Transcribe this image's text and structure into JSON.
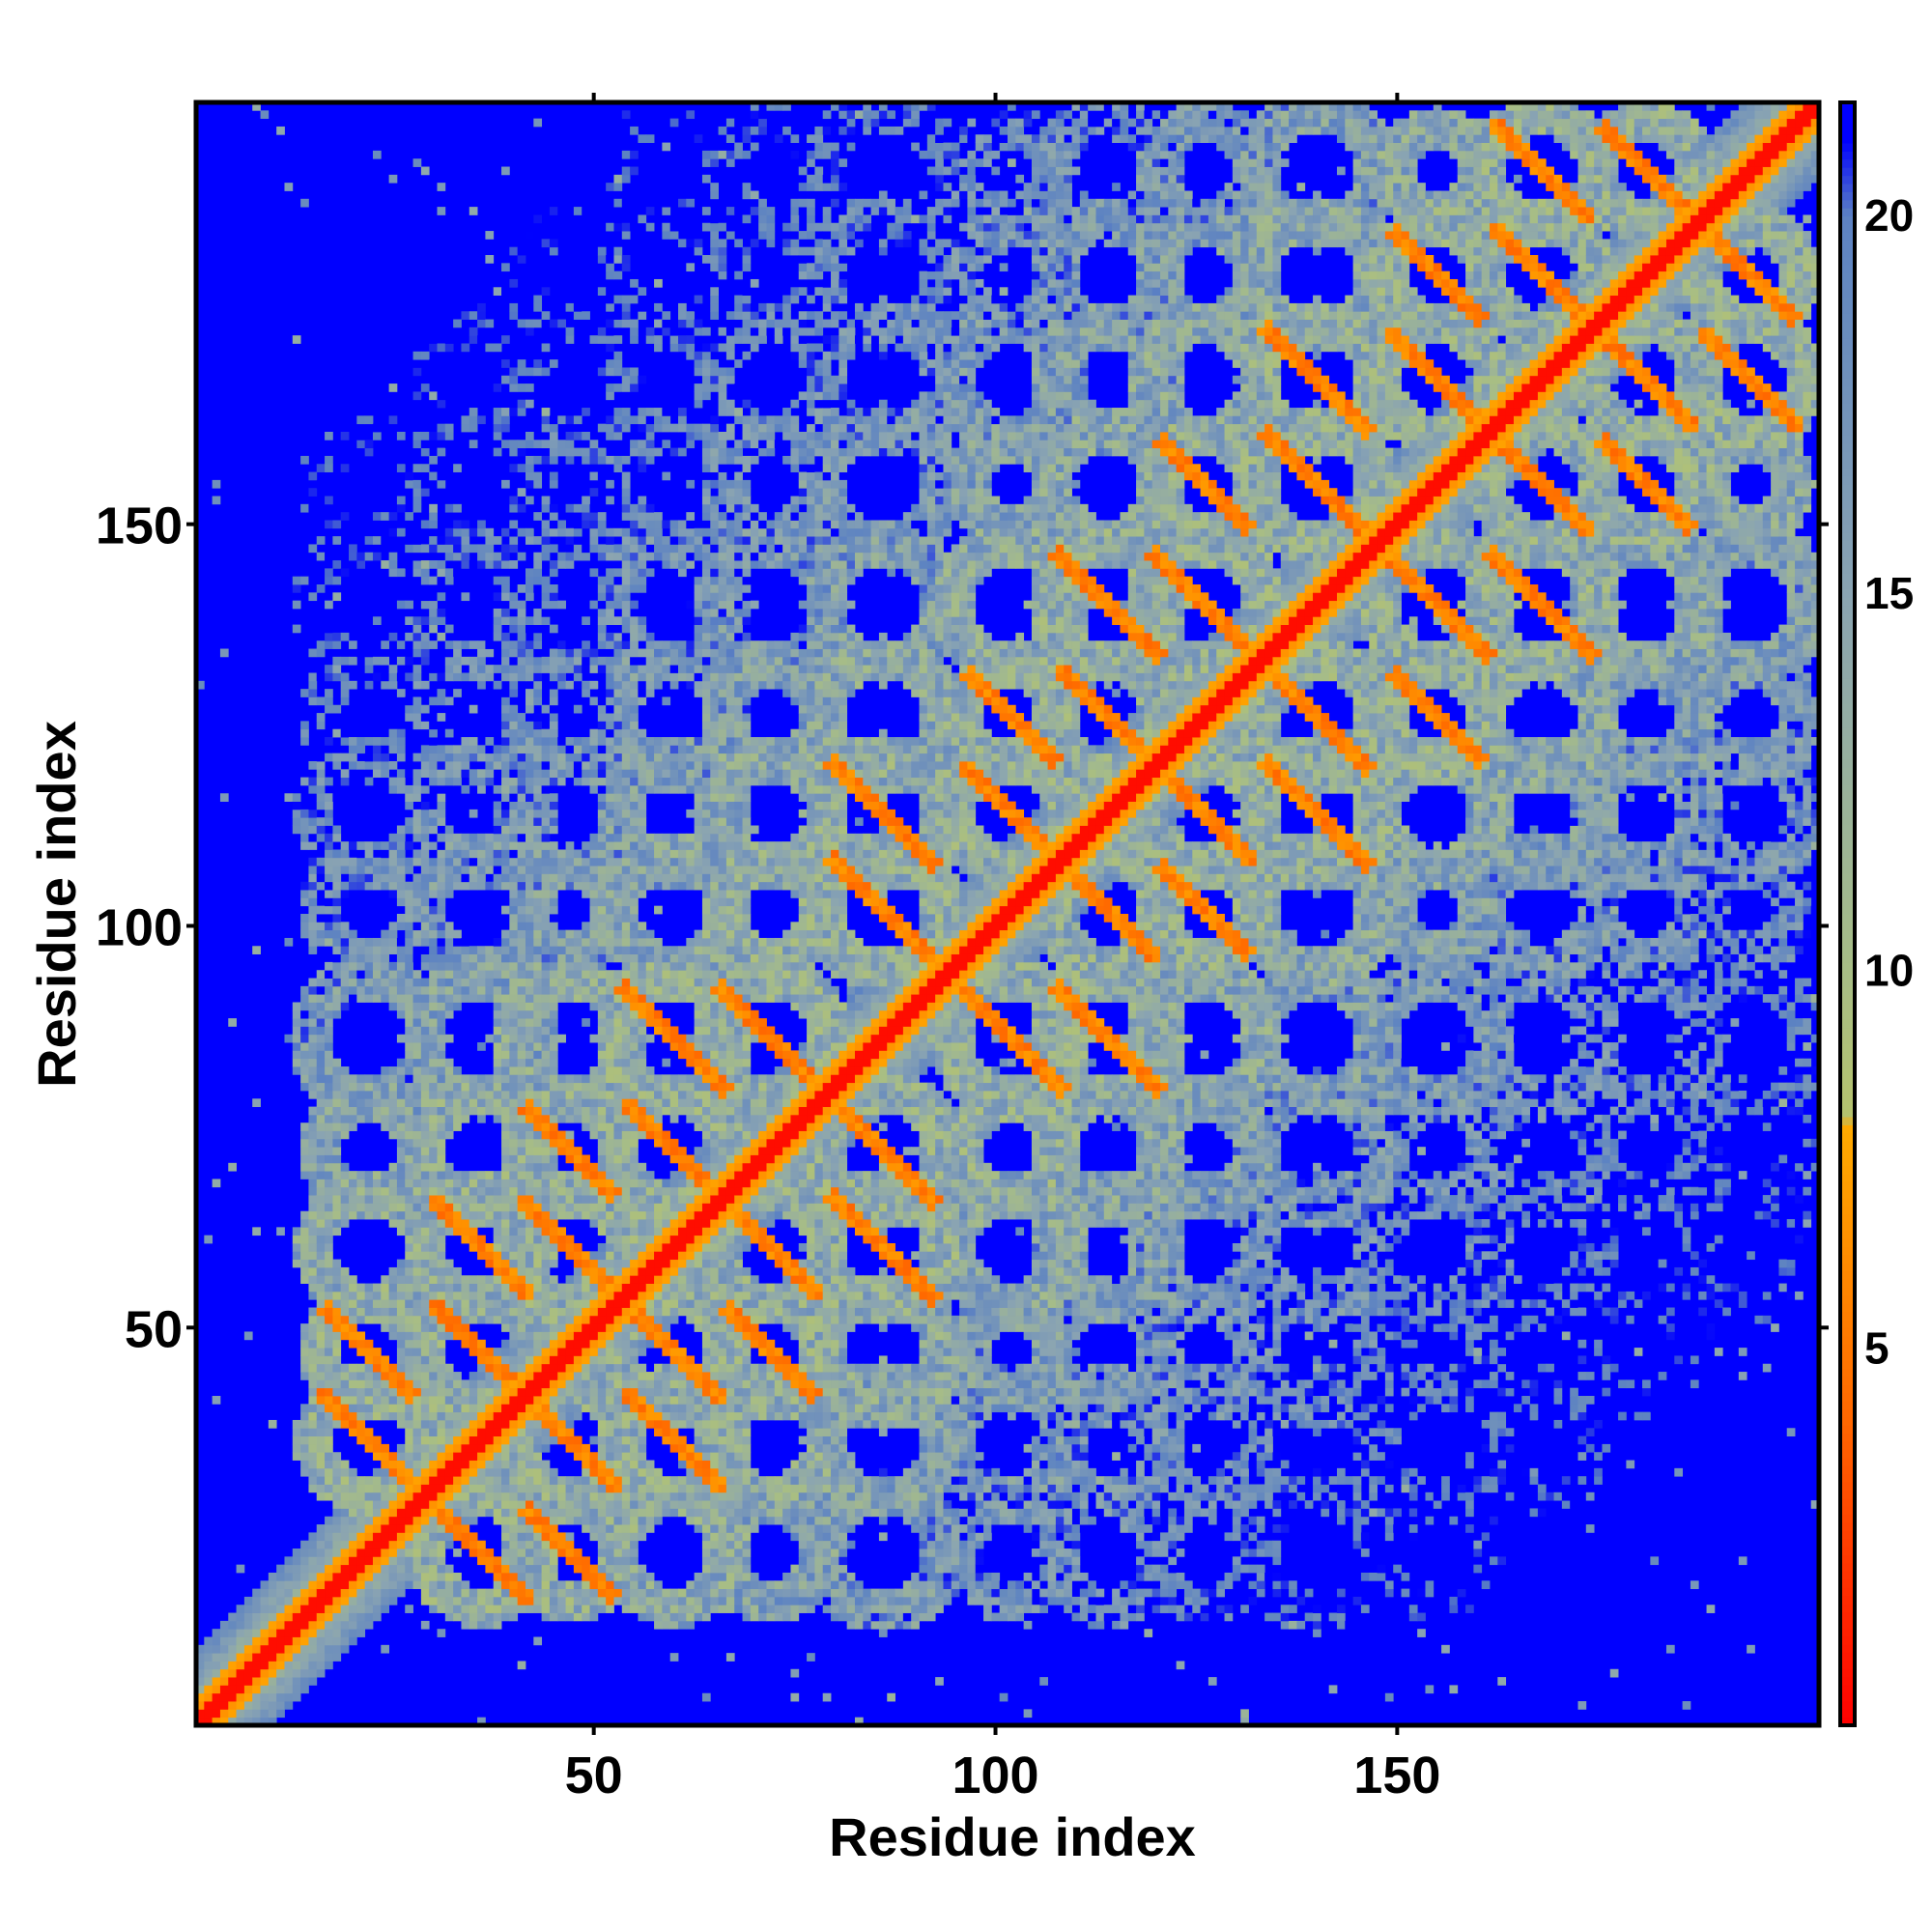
{
  "chart_data": {
    "type": "heatmap",
    "title": "",
    "xlabel": "Residue index",
    "ylabel": "Residue index",
    "xlim": [
      1,
      202
    ],
    "ylim": [
      1,
      202
    ],
    "x_ticks": [
      50,
      100,
      150
    ],
    "y_ticks": [
      50,
      100,
      150
    ],
    "colorbar": {
      "label": "",
      "range": [
        0,
        21.5
      ],
      "ticks": [
        5,
        10,
        15,
        20
      ],
      "stops": [
        {
          "value": 0,
          "color": "#ff0000"
        },
        {
          "value": 4,
          "color": "#ff6600"
        },
        {
          "value": 7.9,
          "color": "#ffaa00"
        },
        {
          "value": 8.1,
          "color": "#b5c26e"
        },
        {
          "value": 10,
          "color": "#a7bd86"
        },
        {
          "value": 15,
          "color": "#8aa4b2"
        },
        {
          "value": 20,
          "color": "#5c82c2"
        },
        {
          "value": 21,
          "color": "#0000ff"
        }
      ],
      "out_of_range_color": "#0000ff"
    },
    "structure": {
      "diagonal_distance": 0,
      "secondary_elements": [
        {
          "center": 22,
          "length": 9
        },
        {
          "center": 36,
          "length": 10
        },
        {
          "center": 47,
          "length": 8
        },
        {
          "center": 60,
          "length": 10
        },
        {
          "center": 72,
          "length": 9
        },
        {
          "center": 86,
          "length": 11
        },
        {
          "center": 102,
          "length": 8
        },
        {
          "center": 114,
          "length": 10
        },
        {
          "center": 126,
          "length": 9
        },
        {
          "center": 140,
          "length": 11
        },
        {
          "center": 155,
          "length": 8
        },
        {
          "center": 168,
          "length": 10
        },
        {
          "center": 181,
          "length": 9
        },
        {
          "center": 194,
          "length": 8
        }
      ]
    },
    "grid": false,
    "legend": "colorbar-right"
  },
  "axes": {
    "x_title": "Residue index",
    "y_title": "Residue index",
    "x_tick_labels": [
      "50",
      "100",
      "150"
    ],
    "y_tick_labels": [
      "50",
      "100",
      "150"
    ],
    "colorbar_tick_labels": [
      "5",
      "10",
      "15",
      "20"
    ]
  }
}
